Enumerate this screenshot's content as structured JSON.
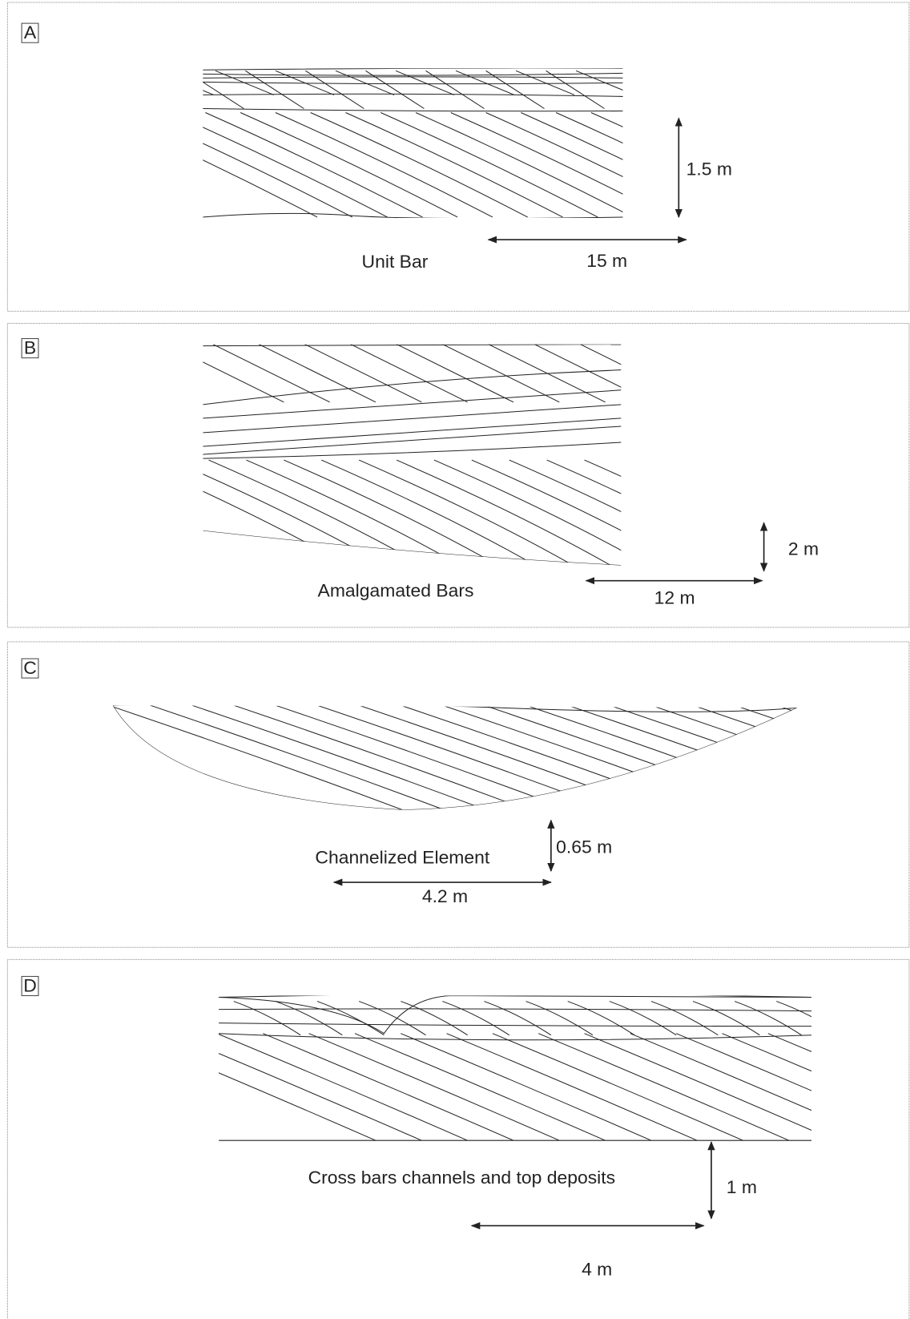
{
  "panels": [
    {
      "letter": "A",
      "caption": "Unit Bar",
      "vertical_scale": "1.5 m",
      "horizontal_scale": "15 m"
    },
    {
      "letter": "B",
      "caption": "Amalgamated Bars",
      "vertical_scale": "2 m",
      "horizontal_scale": "12 m"
    },
    {
      "letter": "C",
      "caption": "Channelized Element",
      "vertical_scale": "0.65 m",
      "horizontal_scale": "4.2 m"
    },
    {
      "letter": "D",
      "caption": "Cross bars channels and top deposits",
      "vertical_scale": "1 m",
      "horizontal_scale": "4 m"
    }
  ]
}
